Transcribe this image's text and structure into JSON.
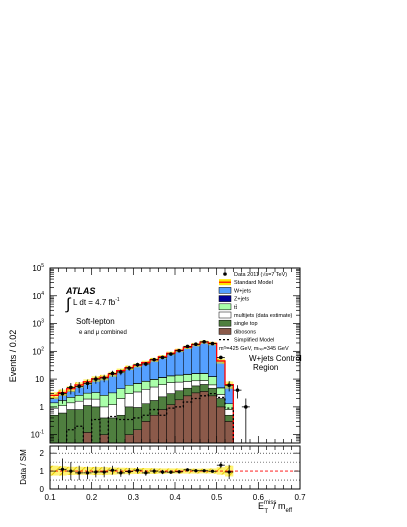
{
  "chart_data": {
    "type": "bar",
    "stacked_histogram": true,
    "x": [
      0.11,
      0.13,
      0.15,
      0.17,
      0.19,
      0.21,
      0.23,
      0.25,
      0.27,
      0.29,
      0.31,
      0.33,
      0.35,
      0.37,
      0.39,
      0.41,
      0.43,
      0.45,
      0.47,
      0.49,
      0.51,
      0.53,
      0.55
    ],
    "bin_width": 0.02,
    "xlabel_main": "E",
    "xlabel_sup": "miss",
    "xlabel_sub": "T",
    "xlabel_tail": "/ m",
    "xlabel_tail_sub": "eff",
    "ylabel": "Events / 0.02",
    "xlim": [
      0.1,
      0.7
    ],
    "ylim": [
      0.05,
      100000
    ],
    "log_y": true,
    "xticks": [
      "0.1",
      "0.2",
      "0.3",
      "0.4",
      "0.5",
      "0.6",
      "0.7"
    ],
    "yticks": [
      {
        "base": "10",
        "exp": "-1"
      },
      {
        "base": "1",
        "exp": ""
      },
      {
        "base": "10",
        "exp": ""
      },
      {
        "base": "10",
        "exp": "2"
      },
      {
        "base": "10",
        "exp": "3"
      },
      {
        "base": "10",
        "exp": "4"
      },
      {
        "base": "10",
        "exp": "5"
      }
    ],
    "series": [
      {
        "name": "dibosons",
        "color": "#8b5a4a",
        "values": [
          0,
          0,
          0,
          0,
          0.12,
          0,
          0.1,
          0,
          0,
          0.1,
          0.15,
          0.3,
          0.5,
          0.8,
          1.2,
          1.8,
          2.5,
          3.2,
          3.6,
          2.5,
          1.0,
          0.3,
          0
        ]
      },
      {
        "name": "single top",
        "color": "#4f7f3f",
        "values": [
          0.5,
          0.6,
          0.8,
          0.8,
          1.0,
          1.0,
          0.3,
          0.4,
          0.5,
          0.9,
          0.8,
          1.0,
          1.2,
          1.5,
          1.8,
          2.0,
          2.2,
          2.5,
          2.8,
          2.2,
          1.0,
          0.2,
          0
        ]
      },
      {
        "name": "multijets (data estimate)",
        "color": "#ffffff",
        "values": [
          0.4,
          0.5,
          0.6,
          0.8,
          0.8,
          0.9,
          0.6,
          0.8,
          1.5,
          2.0,
          2.5,
          3.0,
          3.5,
          4.0,
          4.5,
          4.0,
          3.5,
          3.0,
          2.5,
          1.5,
          0.8,
          0.3,
          0
        ]
      },
      {
        "name": "tt̄",
        "color": "#aaffaa",
        "values": [
          0.5,
          0.6,
          0.8,
          1.0,
          1.2,
          1.4,
          1.6,
          2.0,
          2.5,
          3.0,
          3.5,
          4.0,
          4.5,
          5.0,
          5.5,
          6.0,
          6.5,
          7.0,
          7.0,
          6.0,
          2.0,
          0.5,
          0
        ]
      },
      {
        "name": "Z+jets",
        "color": "#000099",
        "values": [
          0,
          0,
          0,
          0,
          0,
          0,
          0,
          0,
          0,
          0,
          0.1,
          0.1,
          0.1,
          0.2,
          0.2,
          0.2,
          0.3,
          0.3,
          0.3,
          0.2,
          0.1,
          0,
          0
        ]
      },
      {
        "name": "W+jets",
        "color": "#55a0ff",
        "values": [
          0.7,
          1.0,
          1.5,
          2.8,
          4.5,
          6.5,
          9.0,
          11.5,
          15.0,
          19.0,
          24.0,
          31.0,
          40.0,
          52.0,
          72.0,
          95.0,
          125.0,
          160.0,
          200.0,
          180.0,
          40.0,
          5.0,
          0
        ]
      }
    ],
    "standard_model": [
      2.6,
      3.3,
      4.5,
      6.2,
      8.0,
      10.3,
      11.6,
      15.3,
      20.2,
      25.9,
      31.5,
      39.4,
      49.8,
      63.5,
      85.2,
      109,
      140,
      176,
      216,
      192,
      45,
      6.3,
      0
    ],
    "sm_band_low": [
      1.9,
      2.5,
      3.5,
      4.9,
      6.3,
      8.0,
      9.0,
      12.3,
      16.5,
      21.5,
      26.5,
      33.0,
      42.0,
      54.0,
      73.0,
      94.0,
      121.0,
      152.0,
      187.0,
      165.0,
      36.0,
      4.5,
      0
    ],
    "sm_band_high": [
      3.4,
      4.2,
      5.6,
      7.7,
      9.8,
      12.7,
      14.2,
      18.4,
      24.0,
      30.5,
      36.8,
      46.0,
      58.0,
      73.0,
      98.0,
      125.0,
      160.0,
      200.0,
      246.0,
      220.0,
      55.0,
      8.2,
      0
    ],
    "signal": [
      0,
      0,
      0.15,
      0.2,
      0,
      0.35,
      0,
      0.45,
      0.35,
      0.35,
      0.4,
      0.5,
      0.8,
      0.5,
      0.9,
      1.0,
      1.5,
      2.0,
      2.5,
      3.0,
      2.2,
      0.9,
      0
    ],
    "data_points": [
      {
        "x": 0.13,
        "y": 3.0,
        "yerr": 1.7
      },
      {
        "x": 0.15,
        "y": 5.0,
        "yerr": 2.2
      },
      {
        "x": 0.17,
        "y": 5.5,
        "yerr": 2.3
      },
      {
        "x": 0.19,
        "y": 7.0,
        "yerr": 2.6
      },
      {
        "x": 0.21,
        "y": 10.0,
        "yerr": 3.2
      },
      {
        "x": 0.23,
        "y": 11.0,
        "yerr": 3.3
      },
      {
        "x": 0.25,
        "y": 16.0,
        "yerr": 4.0
      },
      {
        "x": 0.27,
        "y": 18.0,
        "yerr": 4.2
      },
      {
        "x": 0.29,
        "y": 25.0,
        "yerr": 5.0
      },
      {
        "x": 0.31,
        "y": 33.0,
        "yerr": 5.7
      },
      {
        "x": 0.33,
        "y": 35.0,
        "yerr": 5.9
      },
      {
        "x": 0.35,
        "y": 50.0,
        "yerr": 7.1
      },
      {
        "x": 0.37,
        "y": 60.0,
        "yerr": 7.7
      },
      {
        "x": 0.39,
        "y": 80.0,
        "yerr": 8.9
      },
      {
        "x": 0.41,
        "y": 105.0,
        "yerr": 10.2
      },
      {
        "x": 0.43,
        "y": 150.0,
        "yerr": 12.2
      },
      {
        "x": 0.45,
        "y": 180.0,
        "yerr": 13.4
      },
      {
        "x": 0.47,
        "y": 220.0,
        "yerr": 14.8
      },
      {
        "x": 0.49,
        "y": 190.0,
        "yerr": 13.8
      },
      {
        "x": 0.51,
        "y": 60.0,
        "yerr": 7.7
      },
      {
        "x": 0.53,
        "y": 6.0,
        "yerr": 2.4
      },
      {
        "x": 0.55,
        "y": 4.0,
        "yerr": 2.0
      },
      {
        "x": 0.57,
        "y": 1.0,
        "yerr": 1.0
      }
    ],
    "ratio_panel": {
      "ylabel": "Data / SM",
      "ylim": [
        0,
        2.4
      ],
      "yticks": [
        "0",
        "1",
        "2"
      ],
      "points": [
        {
          "x": 0.13,
          "y": 1.1,
          "yerr": 0.6
        },
        {
          "x": 0.15,
          "y": 1.0,
          "yerr": 0.5
        },
        {
          "x": 0.17,
          "y": 0.9,
          "yerr": 0.4
        },
        {
          "x": 0.19,
          "y": 0.9,
          "yerr": 0.35
        },
        {
          "x": 0.21,
          "y": 0.95,
          "yerr": 0.3
        },
        {
          "x": 0.23,
          "y": 0.95,
          "yerr": 0.3
        },
        {
          "x": 0.25,
          "y": 1.05,
          "yerr": 0.25
        },
        {
          "x": 0.27,
          "y": 0.9,
          "yerr": 0.22
        },
        {
          "x": 0.29,
          "y": 0.97,
          "yerr": 0.2
        },
        {
          "x": 0.31,
          "y": 1.05,
          "yerr": 0.18
        },
        {
          "x": 0.33,
          "y": 0.9,
          "yerr": 0.16
        },
        {
          "x": 0.35,
          "y": 1.0,
          "yerr": 0.14
        },
        {
          "x": 0.37,
          "y": 0.95,
          "yerr": 0.12
        },
        {
          "x": 0.39,
          "y": 0.94,
          "yerr": 0.1
        },
        {
          "x": 0.41,
          "y": 0.96,
          "yerr": 0.1
        },
        {
          "x": 0.43,
          "y": 1.07,
          "yerr": 0.09
        },
        {
          "x": 0.45,
          "y": 1.02,
          "yerr": 0.08
        },
        {
          "x": 0.47,
          "y": 1.02,
          "yerr": 0.07
        },
        {
          "x": 0.49,
          "y": 0.99,
          "yerr": 0.07
        },
        {
          "x": 0.51,
          "y": 1.33,
          "yerr": 0.17
        },
        {
          "x": 0.53,
          "y": 0.95,
          "yerr": 0.4
        }
      ],
      "band_low": [
        0.75,
        0.75,
        0.78,
        0.79,
        0.79,
        0.78,
        0.78,
        0.8,
        0.82,
        0.83,
        0.84,
        0.84,
        0.84,
        0.85,
        0.86,
        0.86,
        0.86,
        0.86,
        0.87,
        0.86,
        0.8,
        0.7,
        0
      ],
      "band_high": [
        1.3,
        1.27,
        1.24,
        1.24,
        1.23,
        1.23,
        1.22,
        1.2,
        1.19,
        1.18,
        1.17,
        1.17,
        1.16,
        1.15,
        1.15,
        1.15,
        1.14,
        1.14,
        1.14,
        1.15,
        1.22,
        1.3,
        0
      ]
    },
    "legend_placement": "top-right",
    "legend": [
      {
        "label": "Data 2011 (√s=7 TeV)",
        "kind": "marker"
      },
      {
        "label": "Standard Model",
        "kind": "sm"
      },
      {
        "label": "W+jets",
        "kind": "box",
        "color": "#55a0ff"
      },
      {
        "label": "Z+jets",
        "kind": "box",
        "color": "#000099"
      },
      {
        "label": "tt̄",
        "kind": "box",
        "color": "#aaffaa"
      },
      {
        "label": "multijets (data estimate)",
        "kind": "box",
        "color": "#ffffff"
      },
      {
        "label": "single top",
        "kind": "box",
        "color": "#4f7f3f"
      },
      {
        "label": "dibosons",
        "kind": "box",
        "color": "#8b5a4a"
      },
      {
        "label": "Simplified Model",
        "kind": "dashed"
      },
      {
        "label": "mᴳ=425 GeV,  mₗₛₚ=345 GeV",
        "kind": "none"
      }
    ],
    "annotations": {
      "atlas": "ATLAS",
      "lumi": "L dt = 4.7 fb",
      "lumi_exp": "-1",
      "channel": "Soft-lepton",
      "channel_sub": "e and μ combined",
      "region_line1": "W+jets Control",
      "region_line2": "Region"
    }
  },
  "colors": {
    "sm_line": "#ff0000",
    "sm_band": "#ffe800",
    "data": "#000000"
  }
}
